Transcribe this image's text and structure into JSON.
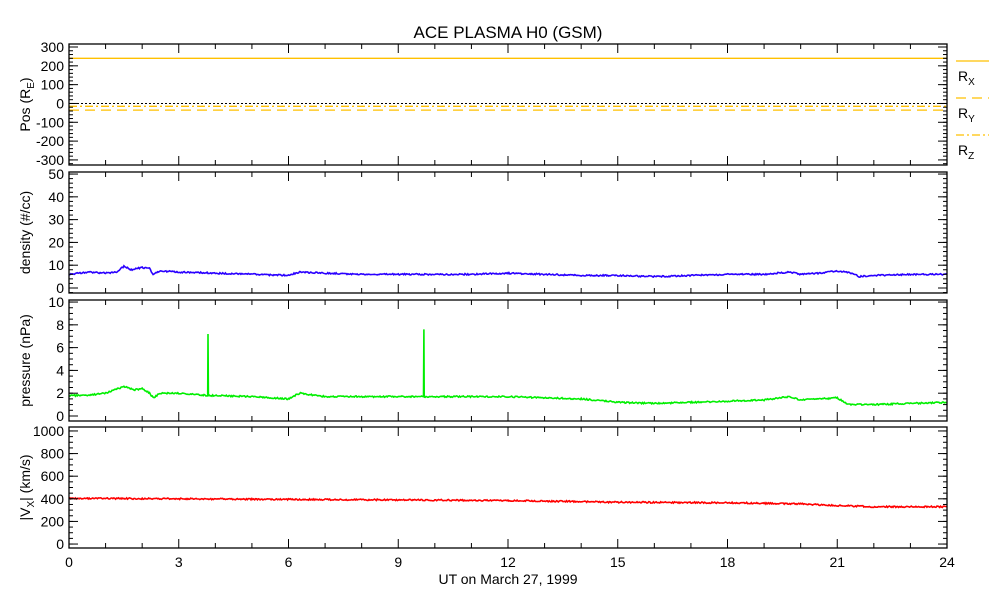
{
  "chart_data": {
    "type": "line",
    "title": "ACE PLASMA H0 (GSM)",
    "xlabel": "UT on March 27, 1999",
    "xlim": [
      0,
      24
    ],
    "xticks": [
      0,
      3,
      6,
      9,
      12,
      15,
      18,
      21,
      24
    ],
    "xtick_labels": [
      "0",
      "3",
      "6",
      "9",
      "12",
      "15",
      "18",
      "21",
      "24"
    ],
    "grid": false,
    "panels": [
      {
        "name": "position",
        "ylabel": "Pos (R",
        "ylabel_sub": "E",
        "ylabel_end": ")",
        "ylim": [
          -327,
          316
        ],
        "yticks": [
          -300,
          -200,
          -100,
          0,
          100,
          200,
          300
        ],
        "ytick_labels": [
          "-300",
          "-200",
          "-100",
          "0",
          "100",
          "200",
          "300"
        ],
        "yminor": 20,
        "zero_line": true,
        "legend": "right",
        "series": [
          {
            "name": "R",
            "sub": "X",
            "color": "#ffc000",
            "dash": "",
            "x": [
              0,
              24
            ],
            "y": [
              240,
              240
            ]
          },
          {
            "name": "R",
            "sub": "Y",
            "color": "#ffc000",
            "dash": "10,6",
            "x": [
              0,
              24
            ],
            "y": [
              -35,
              -35
            ]
          },
          {
            "name": "R",
            "sub": "Z",
            "color": "#ffc000",
            "dash": "8,3,2,3",
            "x": [
              0,
              24
            ],
            "y": [
              -15,
              -15
            ]
          }
        ]
      },
      {
        "name": "density",
        "ylabel": "density (#/cc)",
        "ylim": [
          -2.2,
          50.9
        ],
        "yticks": [
          0,
          10,
          20,
          30,
          40,
          50
        ],
        "ytick_labels": [
          "0",
          "10",
          "20",
          "30",
          "40",
          "50"
        ],
        "yminor": 2,
        "series": [
          {
            "name": "density",
            "color": "#2a00ff",
            "dash": "",
            "x": [
              0,
              0.5,
              1,
              1.3,
              1.5,
              1.7,
              2,
              2.2,
              2.3,
              2.5,
              3,
              4,
              5,
              6,
              6.3,
              7,
              8,
              9,
              10,
              11,
              12,
              13,
              14,
              15,
              16,
              17,
              18,
              19,
              19.7,
              20,
              20.5,
              21,
              21.4,
              21.6,
              22,
              23,
              24
            ],
            "y": [
              6,
              7,
              6.5,
              7,
              9.5,
              8,
              9,
              8.5,
              6,
              7.5,
              7,
              6.5,
              6,
              5.5,
              7,
              6.5,
              6,
              6,
              6,
              6,
              6.5,
              6,
              5.5,
              5.5,
              5,
              5.5,
              6,
              6,
              7,
              6,
              6.5,
              7.5,
              6.5,
              5,
              5.5,
              6,
              6
            ]
          }
        ]
      },
      {
        "name": "pressure",
        "ylabel": "pressure (nPa)",
        "ylim": [
          -0.44,
          10.18
        ],
        "yticks": [
          0,
          2,
          4,
          6,
          8,
          10
        ],
        "ytick_labels": [
          "0",
          "2",
          "4",
          "6",
          "8",
          "10"
        ],
        "yminor": 0.5,
        "series": [
          {
            "name": "pressure",
            "color": "#00ee00",
            "dash": "",
            "x": [
              0,
              0.5,
              1,
              1.5,
              1.8,
              2,
              2.2,
              2.3,
              2.5,
              3,
              3.79,
              3.8,
              3.81,
              4,
              5,
              6,
              6.3,
              7,
              8,
              9,
              9.69,
              9.7,
              9.71,
              10,
              11,
              12,
              13,
              14,
              15,
              16,
              17,
              18,
              19,
              19.7,
              20,
              21,
              21.3,
              22,
              23,
              24
            ],
            "y": [
              1.8,
              1.8,
              2.0,
              2.6,
              2.3,
              2.4,
              2.0,
              1.6,
              2.0,
              2.0,
              1.8,
              7.2,
              1.8,
              1.8,
              1.7,
              1.5,
              2.0,
              1.7,
              1.7,
              1.7,
              1.7,
              7.6,
              1.7,
              1.7,
              1.7,
              1.7,
              1.6,
              1.5,
              1.2,
              1.1,
              1.2,
              1.3,
              1.4,
              1.7,
              1.4,
              1.6,
              1.0,
              1.0,
              1.1,
              1.2
            ]
          }
        ]
      },
      {
        "name": "velocity",
        "ylabel": "|V",
        "ylabel_sub": "X",
        "ylabel_end": "| (km/s)",
        "ylim": [
          -35,
          1035
        ],
        "yticks": [
          0,
          200,
          400,
          600,
          800,
          1000
        ],
        "ytick_labels": [
          "0",
          "200",
          "400",
          "600",
          "800",
          "1000"
        ],
        "yminor": 50,
        "series": [
          {
            "name": "Vx",
            "color": "#ff0000",
            "dash": "",
            "x": [
              0,
              3,
              6,
              9,
              12,
              15,
              18,
              20,
              21,
              22,
              24
            ],
            "y": [
              405,
              400,
              395,
              390,
              385,
              370,
              365,
              355,
              340,
              330,
              330
            ]
          }
        ]
      }
    ]
  }
}
